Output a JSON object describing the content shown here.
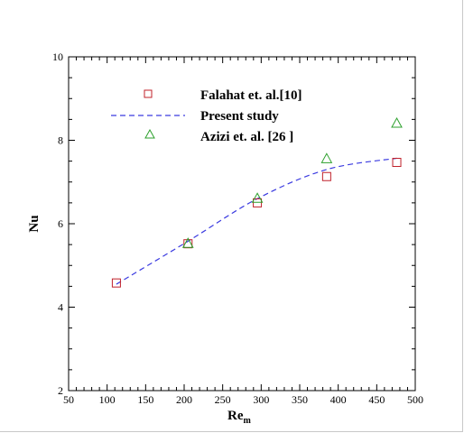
{
  "chart_data": {
    "type": "scatter",
    "x_label": {
      "main": "Re",
      "sub": "m"
    },
    "y_label": "Nu",
    "xlim": [
      50,
      500
    ],
    "ylim": [
      2,
      10
    ],
    "x_ticks": [
      "50",
      "100",
      "150",
      "200",
      "250",
      "300",
      "350",
      "400",
      "450",
      "500"
    ],
    "y_ticks": [
      "2",
      "4",
      "6",
      "8",
      "10"
    ],
    "grid": false,
    "legend_position": "top-left",
    "series": [
      {
        "name": "Falahat et. al.[10]",
        "marker": "square",
        "color": "#c0202a",
        "x": [
          112,
          205,
          295,
          385,
          476
        ],
        "y": [
          4.58,
          5.52,
          6.5,
          7.13,
          7.47
        ]
      },
      {
        "name": "Present study",
        "marker": "dashed-line",
        "color": "#3a3ae0",
        "x": [
          112,
          205,
          295,
          385,
          476
        ],
        "y": [
          4.55,
          5.58,
          6.6,
          7.3,
          7.57
        ]
      },
      {
        "name": "Azizi et. al. [26 ]",
        "marker": "triangle",
        "color": "#2ca02c",
        "x": [
          205,
          295,
          385,
          476
        ],
        "y": [
          5.52,
          6.6,
          7.55,
          8.4
        ]
      }
    ]
  }
}
